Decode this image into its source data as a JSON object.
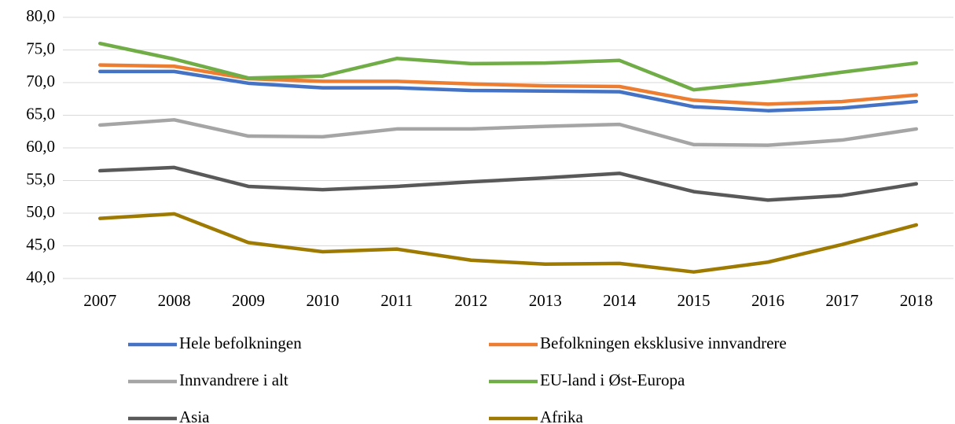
{
  "chart_data": {
    "type": "line",
    "categories": [
      "2007",
      "2008",
      "2009",
      "2010",
      "2011",
      "2012",
      "2013",
      "2014",
      "2015",
      "2016",
      "2017",
      "2018"
    ],
    "series": [
      {
        "name": "Hele befolkningen",
        "color": "#4472c4",
        "values": [
          71.7,
          71.7,
          69.9,
          69.2,
          69.2,
          68.8,
          68.7,
          68.6,
          66.3,
          65.7,
          66.1,
          67.1
        ]
      },
      {
        "name": "Befolkningen eksklusive innvandrere",
        "color": "#ed7d31",
        "values": [
          72.7,
          72.5,
          70.6,
          70.2,
          70.2,
          69.8,
          69.5,
          69.4,
          67.3,
          66.7,
          67.1,
          68.1
        ]
      },
      {
        "name": "Innvandrere i alt",
        "color": "#a5a5a5",
        "values": [
          63.5,
          64.3,
          61.8,
          61.7,
          62.9,
          62.9,
          63.3,
          63.6,
          60.5,
          60.4,
          61.2,
          62.9
        ]
      },
      {
        "name": "EU-land i Øst-Europa",
        "color": "#70ad47",
        "values": [
          76.0,
          73.6,
          70.7,
          71.0,
          73.7,
          72.9,
          73.0,
          73.4,
          68.9,
          70.1,
          71.6,
          73.0
        ]
      },
      {
        "name": "Asia",
        "color": "#595959",
        "values": [
          56.5,
          57.0,
          54.1,
          53.6,
          54.1,
          54.8,
          55.4,
          56.1,
          53.3,
          52.0,
          52.7,
          54.5
        ]
      },
      {
        "name": "Afrika",
        "color": "#9e7a00",
        "values": [
          49.2,
          49.9,
          45.5,
          44.1,
          44.5,
          42.8,
          42.2,
          42.3,
          41.0,
          42.5,
          45.2,
          48.2
        ]
      }
    ],
    "ylim": [
      40,
      80
    ],
    "yticks": [
      {
        "value": 40,
        "label": "40,0"
      },
      {
        "value": 45,
        "label": "45,0"
      },
      {
        "value": 50,
        "label": "50,0"
      },
      {
        "value": 55,
        "label": "55,0"
      },
      {
        "value": 60,
        "label": "60,0"
      },
      {
        "value": 65,
        "label": "65,0"
      },
      {
        "value": 70,
        "label": "70,0"
      },
      {
        "value": 75,
        "label": "75,0"
      },
      {
        "value": 80,
        "label": "80,0"
      }
    ],
    "grid": true
  }
}
